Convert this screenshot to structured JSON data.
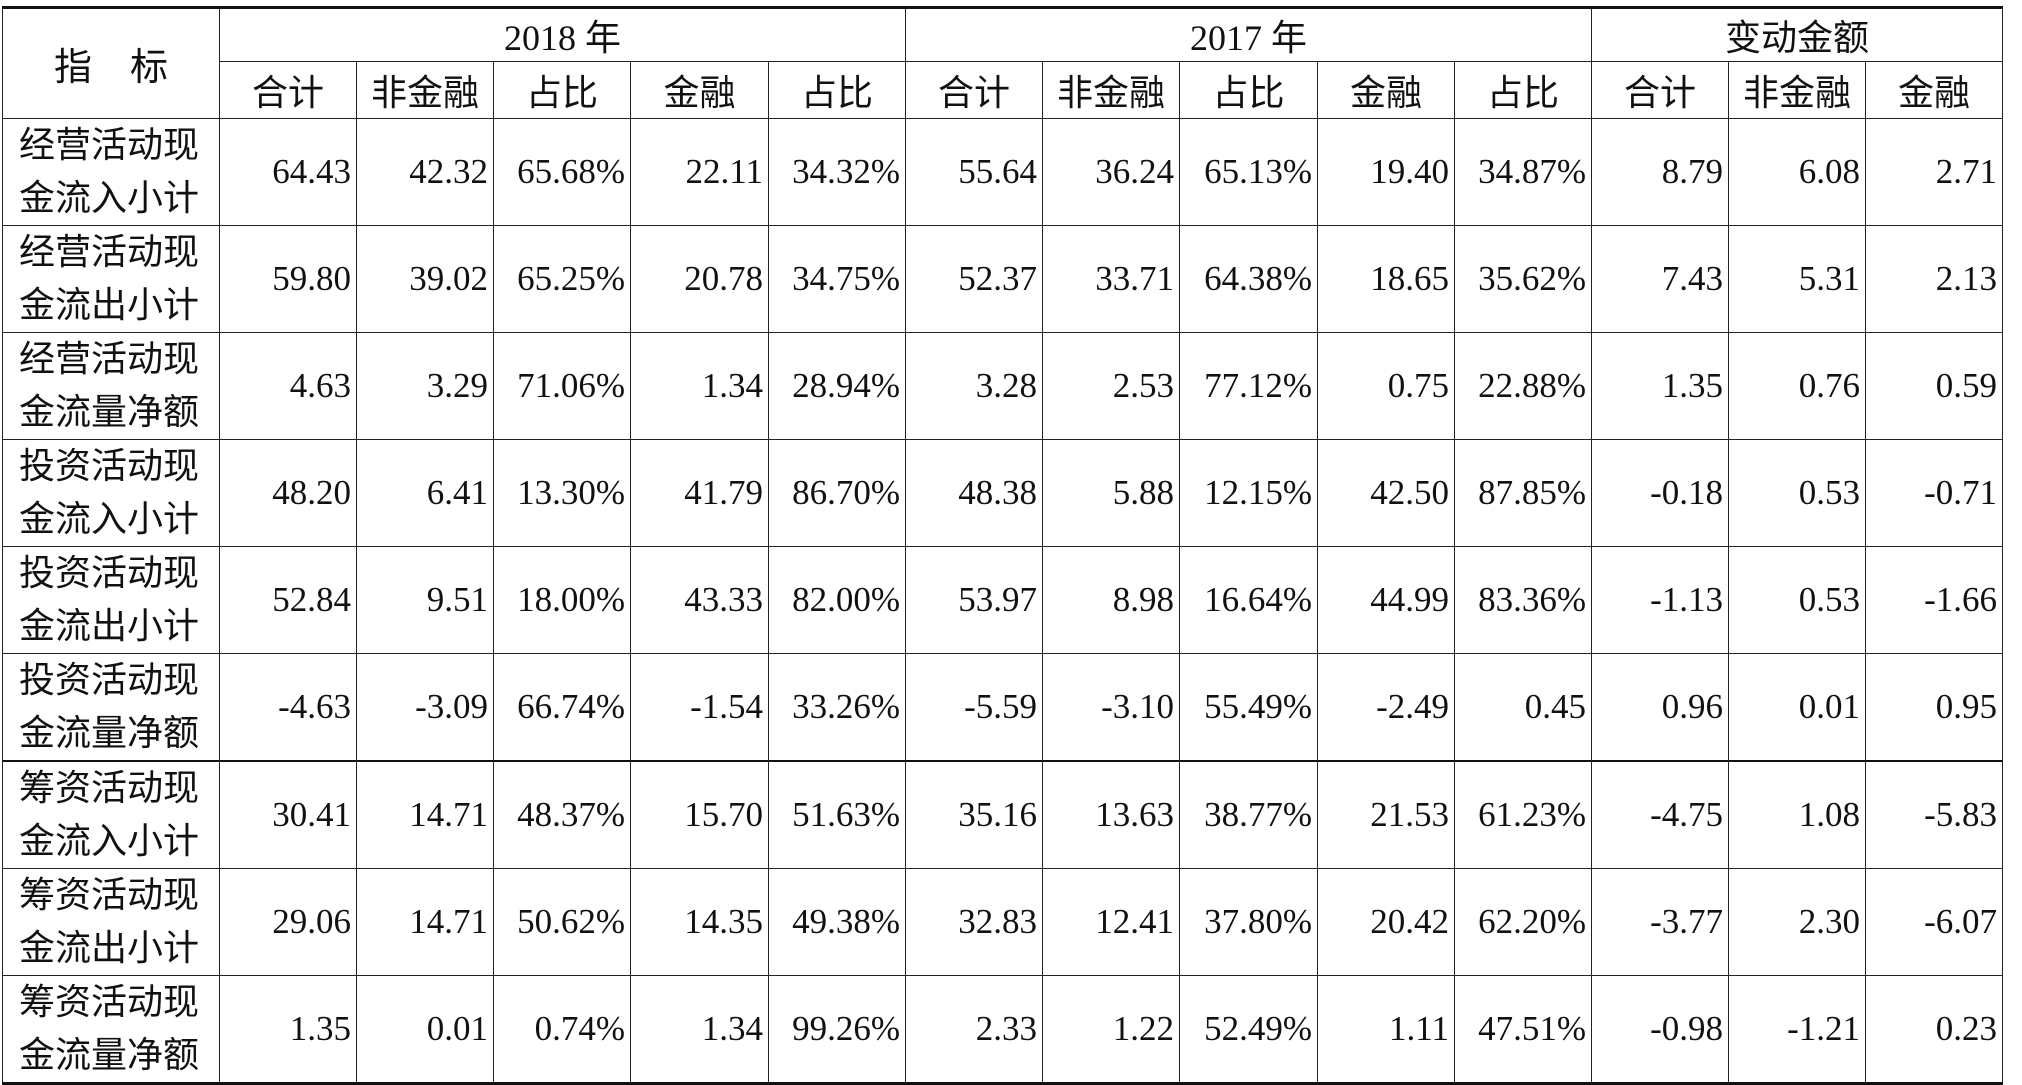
{
  "header": {
    "indicator_label": "指　标",
    "year_2018": "2018 年",
    "year_2017": "2017 年",
    "change": "变动金额",
    "sub_2018": [
      "合计",
      "非金融",
      "占比",
      "金融",
      "占比"
    ],
    "sub_2017": [
      "合计",
      "非金融",
      "占比",
      "金融",
      "占比"
    ],
    "sub_change": [
      "合计",
      "非金融",
      "金融"
    ]
  },
  "rows": [
    {
      "label": [
        "经营活动现",
        "金流入小计"
      ],
      "values": [
        "64.43",
        "42.32",
        "65.68%",
        "22.11",
        "34.32%",
        "55.64",
        "36.24",
        "65.13%",
        "19.40",
        "34.87%",
        "8.79",
        "6.08",
        "2.71"
      ]
    },
    {
      "label": [
        "经营活动现",
        "金流出小计"
      ],
      "values": [
        "59.80",
        "39.02",
        "65.25%",
        "20.78",
        "34.75%",
        "52.37",
        "33.71",
        "64.38%",
        "18.65",
        "35.62%",
        "7.43",
        "5.31",
        "2.13"
      ]
    },
    {
      "label": [
        "经营活动现",
        "金流量净额"
      ],
      "values": [
        "4.63",
        "3.29",
        "71.06%",
        "1.34",
        "28.94%",
        "3.28",
        "2.53",
        "77.12%",
        "0.75",
        "22.88%",
        "1.35",
        "0.76",
        "0.59"
      ]
    },
    {
      "label": [
        "投资活动现",
        "金流入小计"
      ],
      "values": [
        "48.20",
        "6.41",
        "13.30%",
        "41.79",
        "86.70%",
        "48.38",
        "5.88",
        "12.15%",
        "42.50",
        "87.85%",
        "-0.18",
        "0.53",
        "-0.71"
      ]
    },
    {
      "label": [
        "投资活动现",
        "金流出小计"
      ],
      "values": [
        "52.84",
        "9.51",
        "18.00%",
        "43.33",
        "82.00%",
        "53.97",
        "8.98",
        "16.64%",
        "44.99",
        "83.36%",
        "-1.13",
        "0.53",
        "-1.66"
      ]
    },
    {
      "label": [
        "投资活动现",
        "金流量净额"
      ],
      "values": [
        "-4.63",
        "-3.09",
        "66.74%",
        "-1.54",
        "33.26%",
        "-5.59",
        "-3.10",
        "55.49%",
        "-2.49",
        "0.45",
        "0.96",
        "0.01",
        "0.95"
      ]
    },
    {
      "label": [
        "筹资活动现",
        "金流入小计"
      ],
      "values": [
        "30.41",
        "14.71",
        "48.37%",
        "15.70",
        "51.63%",
        "35.16",
        "13.63",
        "38.77%",
        "21.53",
        "61.23%",
        "-4.75",
        "1.08",
        "-5.83"
      ]
    },
    {
      "label": [
        "筹资活动现",
        "金流出小计"
      ],
      "values": [
        "29.06",
        "14.71",
        "50.62%",
        "14.35",
        "49.38%",
        "32.83",
        "12.41",
        "37.80%",
        "20.42",
        "62.20%",
        "-3.77",
        "2.30",
        "-6.07"
      ]
    },
    {
      "label": [
        "筹资活动现",
        "金流量净额"
      ],
      "values": [
        "1.35",
        "0.01",
        "0.74%",
        "1.34",
        "99.26%",
        "2.33",
        "1.22",
        "52.49%",
        "1.11",
        "47.51%",
        "-0.98",
        "-1.21",
        "0.23"
      ]
    }
  ]
}
